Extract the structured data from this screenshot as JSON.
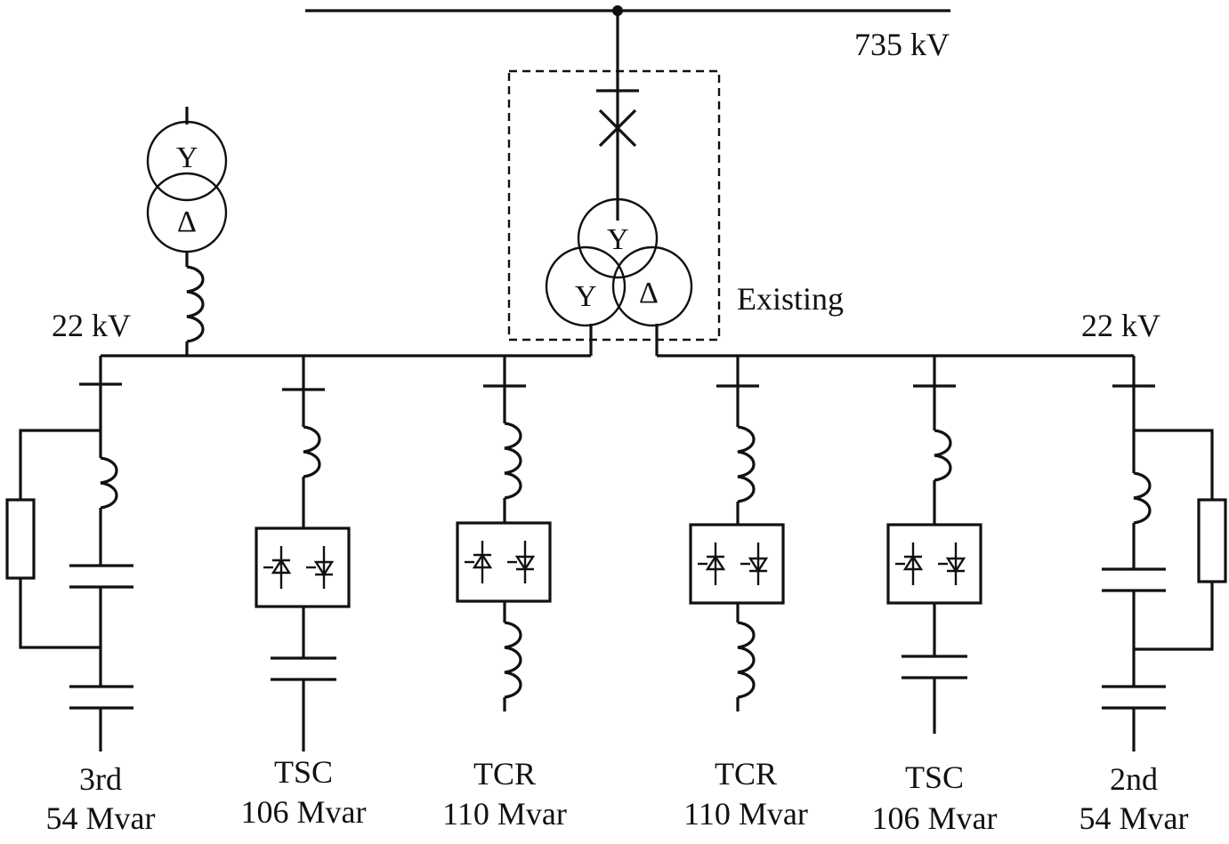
{
  "hv_bus_label": "735 kV",
  "existing_label": "Existing",
  "lv_bus_left_label": "22 kV",
  "lv_bus_right_label": "22 kV",
  "aux_transformer": {
    "upper_winding": "Y",
    "lower_winding": "Δ"
  },
  "main_transformer": {
    "primary_winding": "Y",
    "secondary_winding": "Y",
    "tertiary_winding": "Δ"
  },
  "feeders": [
    {
      "name": "3rd",
      "rating": "54 Mvar"
    },
    {
      "name": "TSC",
      "rating": "106 Mvar"
    },
    {
      "name": "TCR",
      "rating": "110 Mvar"
    },
    {
      "name": "TCR",
      "rating": "110 Mvar"
    },
    {
      "name": "TSC",
      "rating": "106 Mvar"
    },
    {
      "name": "2nd",
      "rating": "54 Mvar"
    }
  ]
}
